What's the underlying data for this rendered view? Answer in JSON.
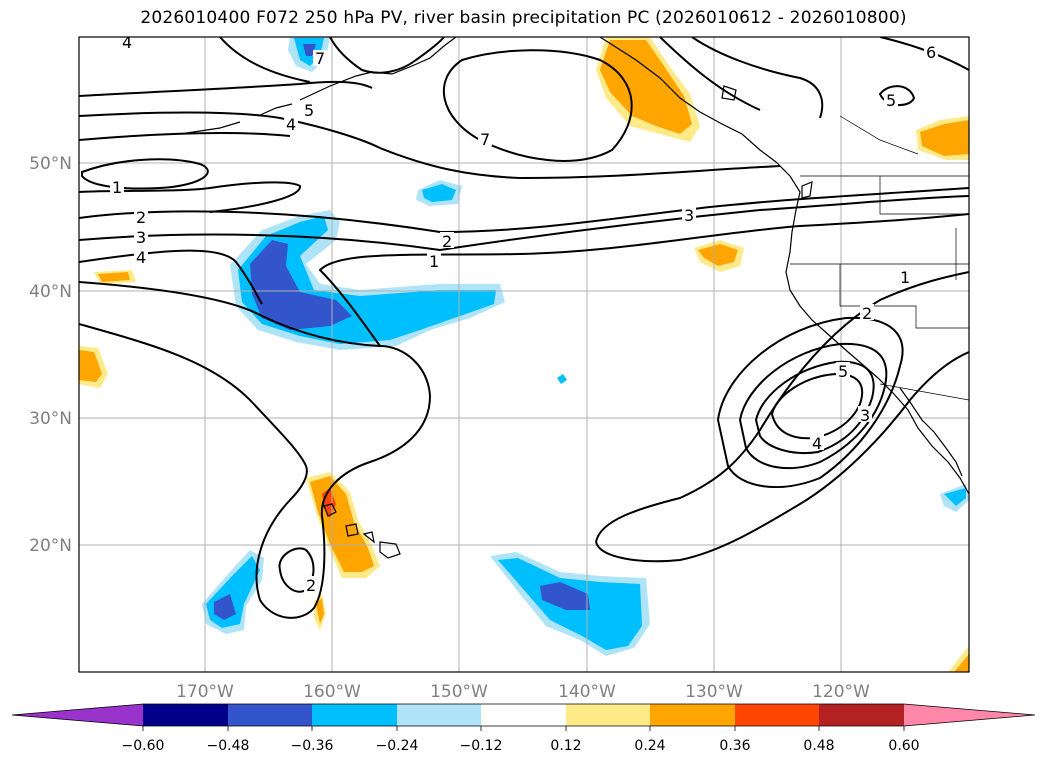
{
  "title": "2026010400 F072 250 hPa PV, river basin precipitation PC (2026010612 - 2026010800)",
  "map": {
    "lon_range": [
      -180,
      -110
    ],
    "lat_range": [
      10,
      60
    ],
    "lat_ticks": [
      {
        "value": 50,
        "label": "50°N"
      },
      {
        "value": 40,
        "label": "40°N"
      },
      {
        "value": 30,
        "label": "30°N"
      },
      {
        "value": 20,
        "label": "20°N"
      }
    ],
    "lon_ticks": [
      {
        "value": -170,
        "label": "170°W"
      },
      {
        "value": -160,
        "label": "160°W"
      },
      {
        "value": -150,
        "label": "150°W"
      },
      {
        "value": -140,
        "label": "140°W"
      },
      {
        "value": -130,
        "label": "130°W"
      },
      {
        "value": -120,
        "label": "120°W"
      }
    ],
    "contour_labels": [
      "4",
      "7",
      "5",
      "4",
      "7",
      "6",
      "5",
      "1",
      "2",
      "3",
      "4",
      "2",
      "1",
      "3",
      "1",
      "2",
      "5",
      "4",
      "3",
      "2"
    ]
  },
  "colorbar": {
    "tick_labels": [
      "−0.60",
      "−0.48",
      "−0.36",
      "−0.24",
      "−0.12",
      "0.12",
      "0.24",
      "0.36",
      "0.48",
      "0.60"
    ],
    "colors": {
      "under": "#9933cc",
      "b1": "#00008b",
      "b2": "#3355cc",
      "b3": "#00bfff",
      "b4": "#aee3f8",
      "zero": "#ffffff",
      "p1": "#ffea8a",
      "p2": "#ffa500",
      "p3": "#ff4500",
      "p4": "#b22222",
      "over": "#ff88aa"
    }
  }
}
